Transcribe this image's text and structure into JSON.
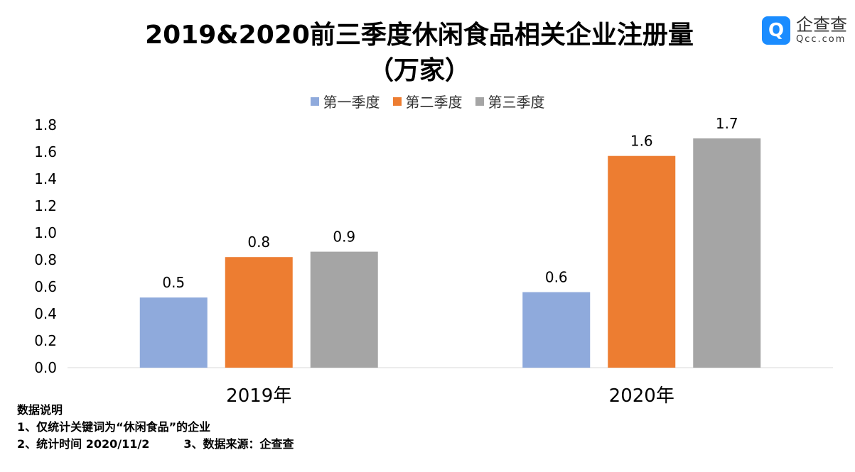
{
  "chart_data": {
    "type": "bar",
    "title": "2019&2020前三季度休闲食品相关企业注册量",
    "subtitle": "（万家）",
    "categories": [
      "2019年",
      "2020年"
    ],
    "series": [
      {
        "name": "第一季度",
        "color": "#8faadc",
        "values": [
          0.52,
          0.56
        ]
      },
      {
        "name": "第二季度",
        "color": "#ed7d31",
        "values": [
          0.82,
          1.57
        ]
      },
      {
        "name": "第三季度",
        "color": "#a5a5a5",
        "values": [
          0.86,
          1.7
        ]
      }
    ],
    "yticks": [
      "0.0",
      "0.2",
      "0.4",
      "0.6",
      "0.8",
      "1.0",
      "1.2",
      "1.4",
      "1.6",
      "1.8"
    ],
    "ylim": [
      0,
      1.8
    ],
    "grid": false,
    "legend": "top"
  },
  "notes": {
    "heading": "数据说明",
    "line1": "1、仅统计关键词为“休闲食品”的企业",
    "line2": "2、统计时间 2020/11/2　　　3、数据来源：企查查"
  },
  "logo": {
    "cn": "企查查",
    "en": "Qcc.com"
  }
}
